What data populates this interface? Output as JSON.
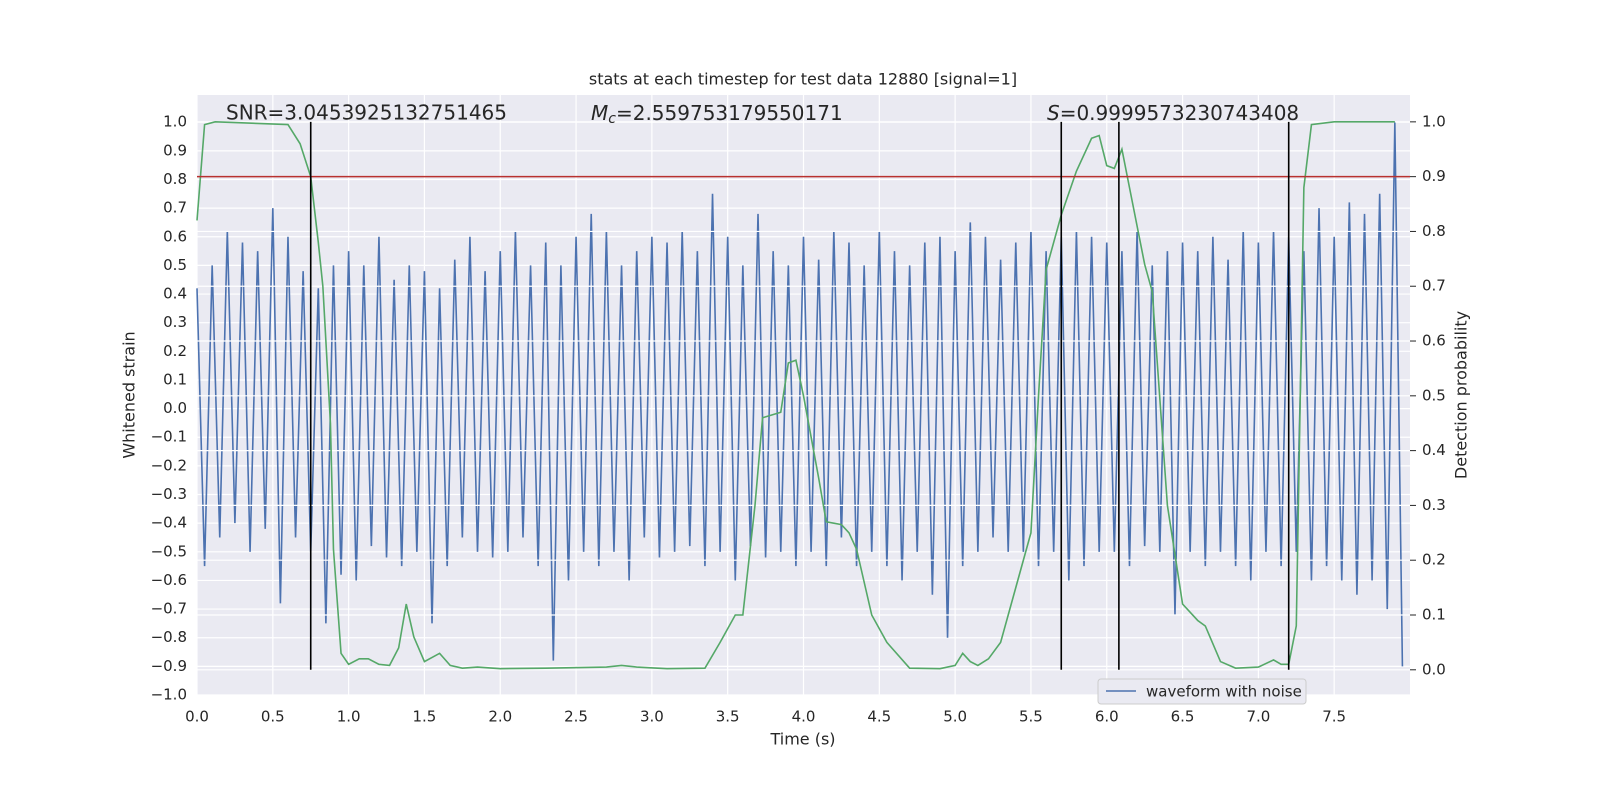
{
  "chart_data": {
    "type": "line",
    "title": "stats at each timestep for test data 12880 [signal=1]",
    "xlabel": "Time (s)",
    "ylabel": "Whitened strain",
    "y2label": "Detection probability",
    "annotations": {
      "snr": "SNR=3.0453925132751465",
      "mc": {
        "symbol": "M",
        "subscript": "c",
        "text": "=2.559753179550171"
      },
      "s": {
        "symbol": "S",
        "text": "=0.9999573230743408"
      }
    },
    "xlim": [
      0,
      8
    ],
    "ylim": [
      -1.0,
      1.095
    ],
    "y2lim": [
      -0.046,
      1.049
    ],
    "xticks": [
      {
        "value": 0,
        "label": "0.0"
      },
      {
        "value": 0.5,
        "label": "0.5"
      },
      {
        "value": 1,
        "label": "1.0"
      },
      {
        "value": 1.5,
        "label": "1.5"
      },
      {
        "value": 2,
        "label": "2.0"
      },
      {
        "value": 2.5,
        "label": "2.5"
      },
      {
        "value": 3,
        "label": "3.0"
      },
      {
        "value": 3.5,
        "label": "3.5"
      },
      {
        "value": 4,
        "label": "4.0"
      },
      {
        "value": 4.5,
        "label": "4.5"
      },
      {
        "value": 5,
        "label": "5.0"
      },
      {
        "value": 5.5,
        "label": "5.5"
      },
      {
        "value": 6,
        "label": "6.0"
      },
      {
        "value": 6.5,
        "label": "6.5"
      },
      {
        "value": 7,
        "label": "7.0"
      },
      {
        "value": 7.5,
        "label": "7.5"
      }
    ],
    "yticks": [
      {
        "value": 1,
        "label": "1.0"
      },
      {
        "value": 0.9,
        "label": "0.9"
      },
      {
        "value": 0.8,
        "label": "0.8"
      },
      {
        "value": 0.7,
        "label": "0.7"
      },
      {
        "value": 0.6,
        "label": "0.6"
      },
      {
        "value": 0.5,
        "label": "0.5"
      },
      {
        "value": 0.4,
        "label": "0.4"
      },
      {
        "value": 0.3,
        "label": "0.3"
      },
      {
        "value": 0.2,
        "label": "0.2"
      },
      {
        "value": 0.1,
        "label": "0.1"
      },
      {
        "value": 0,
        "label": "0.0"
      },
      {
        "value": -0.1,
        "label": "−0.1"
      },
      {
        "value": -0.2,
        "label": "−0.2"
      },
      {
        "value": -0.3,
        "label": "−0.3"
      },
      {
        "value": -0.4,
        "label": "−0.4"
      },
      {
        "value": -0.5,
        "label": "−0.5"
      },
      {
        "value": -0.6,
        "label": "−0.6"
      },
      {
        "value": -0.7,
        "label": "−0.7"
      },
      {
        "value": -0.8,
        "label": "−0.8"
      },
      {
        "value": -0.9,
        "label": "−0.9"
      },
      {
        "value": -1,
        "label": "−1.0"
      }
    ],
    "y2ticks": [
      {
        "value": 0,
        "label": "0.0"
      },
      {
        "value": 0.1,
        "label": "0.1"
      },
      {
        "value": 0.2,
        "label": "0.2"
      },
      {
        "value": 0.3,
        "label": "0.3"
      },
      {
        "value": 0.4,
        "label": "0.4"
      },
      {
        "value": 0.5,
        "label": "0.5"
      },
      {
        "value": 0.6,
        "label": "0.6"
      },
      {
        "value": 0.7,
        "label": "0.7"
      },
      {
        "value": 0.8,
        "label": "0.8"
      },
      {
        "value": 0.9,
        "label": "0.9"
      },
      {
        "value": 1,
        "label": "1.0"
      }
    ],
    "grid": true,
    "legend": "lower right",
    "series": [
      {
        "name": "waveform with noise",
        "color": "#4c72b0",
        "x": [
          0,
          0.05,
          0.1,
          0.15,
          0.2,
          0.25,
          0.3,
          0.35,
          0.4,
          0.45,
          0.5,
          0.55,
          0.6,
          0.65,
          0.7,
          0.75,
          0.8,
          0.85,
          0.9,
          0.95,
          1,
          1.05,
          1.1,
          1.15,
          1.2,
          1.25,
          1.3,
          1.35,
          1.4,
          1.45,
          1.5,
          1.55,
          1.6,
          1.65,
          1.7,
          1.75,
          1.8,
          1.85,
          1.9,
          1.95,
          2,
          2.05,
          2.1,
          2.15,
          2.2,
          2.25,
          2.3,
          2.35,
          2.4,
          2.45,
          2.5,
          2.55,
          2.6,
          2.65,
          2.7,
          2.75,
          2.8,
          2.85,
          2.9,
          2.95,
          3,
          3.05,
          3.1,
          3.15,
          3.2,
          3.25,
          3.3,
          3.35,
          3.4,
          3.45,
          3.5,
          3.55,
          3.6,
          3.65,
          3.7,
          3.75,
          3.8,
          3.85,
          3.9,
          3.95,
          4,
          4.05,
          4.1,
          4.15,
          4.2,
          4.25,
          4.3,
          4.35,
          4.4,
          4.45,
          4.5,
          4.55,
          4.6,
          4.65,
          4.7,
          4.75,
          4.8,
          4.85,
          4.9,
          4.95,
          5,
          5.05,
          5.1,
          5.15,
          5.2,
          5.25,
          5.3,
          5.35,
          5.4,
          5.45,
          5.5,
          5.55,
          5.6,
          5.65,
          5.7,
          5.75,
          5.8,
          5.85,
          5.9,
          5.95,
          6,
          6.05,
          6.1,
          6.15,
          6.2,
          6.25,
          6.3,
          6.35,
          6.4,
          6.45,
          6.5,
          6.55,
          6.6,
          6.65,
          6.7,
          6.75,
          6.8,
          6.85,
          6.9,
          6.95,
          7,
          7.05,
          7.1,
          7.15,
          7.2,
          7.25,
          7.3,
          7.35,
          7.4,
          7.45,
          7.5,
          7.55,
          7.6,
          7.65,
          7.7,
          7.75,
          7.8,
          7.85,
          7.9,
          7.95
        ],
        "values": [
          0.42,
          -0.55,
          0.5,
          -0.45,
          0.62,
          -0.4,
          0.58,
          -0.5,
          0.55,
          -0.42,
          0.7,
          -0.68,
          0.6,
          -0.45,
          0.48,
          -0.5,
          0.42,
          -0.75,
          0.5,
          -0.58,
          0.55,
          -0.6,
          0.5,
          -0.48,
          0.6,
          -0.52,
          0.45,
          -0.55,
          0.5,
          -0.5,
          0.48,
          -0.75,
          0.42,
          -0.55,
          0.52,
          -0.45,
          0.6,
          -0.5,
          0.48,
          -0.52,
          0.55,
          -0.5,
          0.62,
          -0.45,
          0.5,
          -0.55,
          0.58,
          -0.88,
          0.5,
          -0.6,
          0.6,
          -0.5,
          0.68,
          -0.55,
          0.62,
          -0.5,
          0.5,
          -0.6,
          0.55,
          -0.45,
          0.6,
          -0.52,
          0.58,
          -0.5,
          0.62,
          -0.48,
          0.55,
          -0.55,
          0.75,
          -0.5,
          0.6,
          -0.6,
          0.5,
          -0.48,
          0.68,
          -0.52,
          0.55,
          -0.5,
          0.5,
          -0.55,
          0.6,
          -0.5,
          0.52,
          -0.55,
          0.62,
          -0.45,
          0.58,
          -0.55,
          0.5,
          -0.5,
          0.62,
          -0.55,
          0.55,
          -0.6,
          0.5,
          -0.5,
          0.58,
          -0.65,
          0.6,
          -0.8,
          0.55,
          -0.55,
          0.65,
          -0.5,
          0.6,
          -0.45,
          0.52,
          -0.5,
          0.58,
          -0.5,
          0.62,
          -0.55,
          0.55,
          -0.5,
          0.6,
          -0.6,
          0.62,
          -0.55,
          0.6,
          -0.5,
          0.58,
          -0.5,
          0.55,
          -0.55,
          0.62,
          -0.48,
          0.5,
          -0.5,
          0.55,
          -0.72,
          0.58,
          -0.5,
          0.55,
          -0.55,
          0.6,
          -0.5,
          0.52,
          -0.55,
          0.62,
          -0.6,
          0.58,
          -0.5,
          0.62,
          -0.55,
          0.6,
          -0.5,
          0.55,
          -0.6,
          0.7,
          -0.55,
          0.6,
          -0.6,
          0.72,
          -0.65,
          0.68,
          -0.6,
          0.75,
          -0.7,
          1.0,
          -0.9
        ]
      },
      {
        "color": "#55a868",
        "axis": "y2",
        "x": [
          0,
          0.05,
          0.12,
          0.6,
          0.68,
          0.75,
          0.8,
          0.83,
          0.88,
          0.9,
          0.95,
          1.0,
          1.07,
          1.13,
          1.2,
          1.27,
          1.33,
          1.38,
          1.43,
          1.5,
          1.6,
          1.67,
          1.75,
          1.85,
          2.0,
          2.3,
          2.7,
          2.8,
          2.9,
          3.1,
          3.35,
          3.45,
          3.55,
          3.6,
          3.68,
          3.73,
          3.85,
          3.9,
          3.95,
          4.0,
          4.1,
          4.15,
          4.25,
          4.3,
          4.35,
          4.45,
          4.55,
          4.7,
          4.9,
          5.0,
          5.05,
          5.1,
          5.15,
          5.22,
          5.3,
          5.4,
          5.5,
          5.55,
          5.6,
          5.7,
          5.8,
          5.9,
          5.95,
          6.0,
          6.05,
          6.1,
          6.15,
          6.25,
          6.3,
          6.4,
          6.5,
          6.6,
          6.65,
          6.75,
          6.85,
          7.0,
          7.1,
          7.15,
          7.2,
          7.25,
          7.3,
          7.35,
          7.5,
          7.9
        ],
        "values": [
          0.82,
          0.995,
          1.0,
          0.995,
          0.96,
          0.9,
          0.78,
          0.7,
          0.45,
          0.22,
          0.03,
          0.01,
          0.02,
          0.02,
          0.01,
          0.008,
          0.04,
          0.12,
          0.06,
          0.015,
          0.03,
          0.008,
          0.003,
          0.005,
          0.002,
          0.003,
          0.005,
          0.008,
          0.005,
          0.002,
          0.003,
          0.05,
          0.1,
          0.1,
          0.3,
          0.46,
          0.47,
          0.56,
          0.565,
          0.5,
          0.35,
          0.27,
          0.265,
          0.25,
          0.22,
          0.1,
          0.05,
          0.003,
          0.002,
          0.008,
          0.03,
          0.015,
          0.008,
          0.02,
          0.05,
          0.15,
          0.25,
          0.5,
          0.73,
          0.83,
          0.91,
          0.97,
          0.975,
          0.92,
          0.915,
          0.95,
          0.88,
          0.74,
          0.69,
          0.3,
          0.12,
          0.09,
          0.08,
          0.015,
          0.003,
          0.005,
          0.018,
          0.01,
          0.01,
          0.08,
          0.88,
          0.995,
          1.0,
          1.0
        ]
      }
    ],
    "threshold": {
      "axis": "y2",
      "value": 0.9,
      "color": "#b8312f"
    },
    "vlines": {
      "x": [
        0.75,
        5.7,
        6.08,
        7.2
      ],
      "y2range": [
        0,
        1
      ],
      "color": "#000000"
    }
  }
}
